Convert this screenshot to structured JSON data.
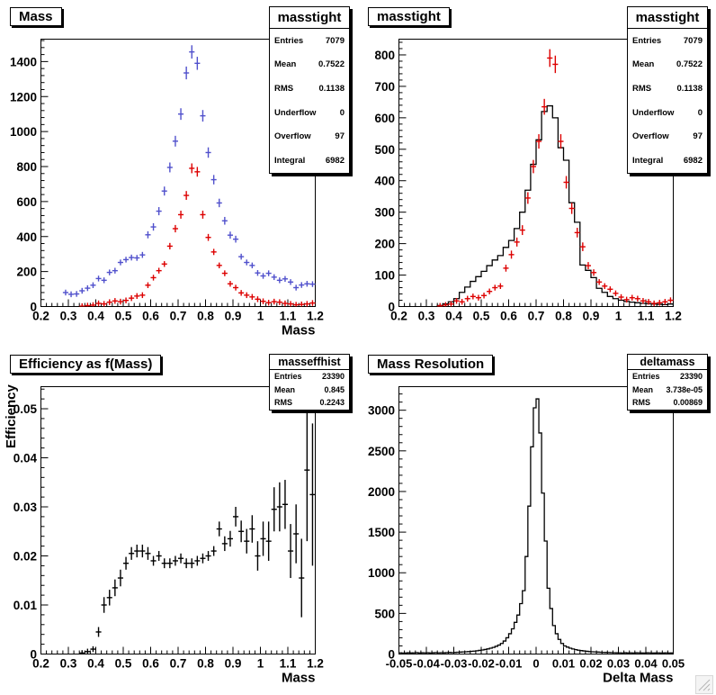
{
  "canvas": {
    "background": "#ffffff",
    "colors": {
      "marker_blue": "#5050cc",
      "marker_red": "#dd0000",
      "hist_black": "#000000"
    }
  },
  "window": {
    "resize_grip_icon": "resize-grip"
  },
  "chart_data": [
    {
      "id": "mass",
      "type": "scatter",
      "title": "Mass",
      "stats": {
        "name": "masstight",
        "rows": [
          {
            "label": "Entries",
            "value": "7079"
          },
          {
            "label": "Mean",
            "value": "0.7522"
          },
          {
            "label": "RMS",
            "value": "0.1138"
          },
          {
            "label": "Underflow",
            "value": "0"
          },
          {
            "label": "Overflow",
            "value": "97"
          },
          {
            "label": "Integral",
            "value": "6982"
          }
        ]
      },
      "xlabel": "Mass",
      "ylabel": "",
      "xlim": [
        0.2,
        1.2
      ],
      "ylim": [
        0,
        1528
      ],
      "xticks": {
        "values": [
          0.2,
          0.3,
          0.4,
          0.5,
          0.6,
          0.7,
          0.8,
          0.9,
          1.0,
          1.1,
          1.2
        ],
        "labels": [
          "0.2",
          "0.3",
          "0.4",
          "0.5",
          "0.6",
          "0.7",
          "0.8",
          "0.9",
          "1",
          "1.1",
          "1.2"
        ]
      },
      "yticks": {
        "values": [
          0,
          200,
          400,
          600,
          800,
          1000,
          1200,
          1400
        ],
        "labels": [
          "0",
          "200",
          "400",
          "600",
          "800",
          "1000",
          "1200",
          "1400"
        ]
      },
      "grid": false,
      "legend": "none",
      "series": [
        {
          "name": "mass-all-points",
          "style": "points",
          "color": "#5050cc",
          "errors": "sqrt",
          "x_start": 0.29,
          "x_step": 0.02,
          "y": [
            80,
            70,
            72,
            90,
            105,
            122,
            160,
            150,
            195,
            205,
            252,
            268,
            280,
            278,
            295,
            410,
            455,
            545,
            660,
            795,
            945,
            1100,
            1335,
            1455,
            1390,
            1090,
            880,
            725,
            592,
            490,
            408,
            385,
            285,
            252,
            235,
            192,
            175,
            190,
            168,
            150,
            158,
            140,
            108,
            123,
            130,
            128
          ]
        },
        {
          "name": "mass-tight-points",
          "style": "points",
          "color": "#dd0000",
          "errors": "sqrt",
          "x_start": 0.35,
          "x_step": 0.02,
          "y": [
            2,
            5,
            8,
            18,
            15,
            25,
            32,
            28,
            35,
            48,
            60,
            65,
            122,
            165,
            205,
            243,
            345,
            445,
            525,
            635,
            790,
            770,
            525,
            395,
            312,
            235,
            190,
            130,
            108,
            78,
            65,
            55,
            42,
            30,
            22,
            28,
            25,
            18,
            15,
            10,
            12,
            15,
            20
          ]
        }
      ]
    },
    {
      "id": "masstight",
      "type": "line",
      "title": "masstight",
      "stats": {
        "name": "masstight",
        "rows": [
          {
            "label": "Entries",
            "value": "7079"
          },
          {
            "label": "Mean",
            "value": "0.7522"
          },
          {
            "label": "RMS",
            "value": "0.1138"
          },
          {
            "label": "Underflow",
            "value": "0"
          },
          {
            "label": "Overflow",
            "value": "97"
          },
          {
            "label": "Integral",
            "value": "6982"
          }
        ]
      },
      "xlabel": "",
      "ylabel": "",
      "xlim": [
        0.2,
        1.2
      ],
      "ylim": [
        0,
        850
      ],
      "xticks": {
        "values": [
          0.2,
          0.3,
          0.4,
          0.5,
          0.6,
          0.7,
          0.8,
          0.9,
          1.0,
          1.1,
          1.2
        ],
        "labels": [
          "0.2",
          "0.3",
          "0.4",
          "0.5",
          "0.6",
          "0.7",
          "0.8",
          "0.9",
          "1",
          "1.1",
          "1.2"
        ]
      },
      "yticks": {
        "values": [
          0,
          100,
          200,
          300,
          400,
          500,
          600,
          700,
          800
        ],
        "labels": [
          "0",
          "100",
          "200",
          "300",
          "400",
          "500",
          "600",
          "700",
          "800"
        ]
      },
      "grid": false,
      "legend": "none",
      "series": [
        {
          "name": "mass-scaled-hist",
          "style": "hist",
          "color": "#000000",
          "x_start": 0.35,
          "x_step": 0.02,
          "y": [
            3,
            8,
            15,
            25,
            45,
            62,
            80,
            95,
            112,
            130,
            148,
            162,
            188,
            210,
            248,
            300,
            370,
            452,
            530,
            620,
            638,
            600,
            505,
            465,
            330,
            268,
            132,
            115,
            92,
            58,
            45,
            32,
            25,
            20,
            16,
            14,
            12,
            10,
            9,
            8,
            7,
            6,
            8
          ]
        },
        {
          "name": "mass-tight-points",
          "style": "points",
          "color": "#dd0000",
          "errors": "sqrt",
          "x_start": 0.35,
          "x_step": 0.02,
          "y": [
            2,
            5,
            8,
            18,
            15,
            25,
            32,
            28,
            35,
            48,
            60,
            65,
            122,
            165,
            205,
            243,
            345,
            445,
            525,
            635,
            790,
            770,
            525,
            395,
            312,
            235,
            190,
            130,
            108,
            78,
            65,
            55,
            42,
            30,
            22,
            28,
            25,
            18,
            15,
            10,
            12,
            15,
            20
          ]
        }
      ]
    },
    {
      "id": "efficiency",
      "type": "scatter",
      "title": "Efficiency as f(Mass)",
      "stats": {
        "name": "masseffhist",
        "rows": [
          {
            "label": "Entries",
            "value": "23390"
          },
          {
            "label": "Mean",
            "value": "0.845"
          },
          {
            "label": "RMS",
            "value": "0.2243"
          }
        ]
      },
      "xlabel": "Mass",
      "ylabel": "Efficiency",
      "xlim": [
        0.2,
        1.2
      ],
      "ylim": [
        0,
        0.0545
      ],
      "xticks": {
        "values": [
          0.2,
          0.3,
          0.4,
          0.5,
          0.6,
          0.7,
          0.8,
          0.9,
          1.0,
          1.1,
          1.2
        ],
        "labels": [
          "0.2",
          "0.3",
          "0.4",
          "0.5",
          "0.6",
          "0.7",
          "0.8",
          "0.9",
          "1",
          "1.1",
          "1.2"
        ]
      },
      "yticks": {
        "values": [
          0,
          0.01,
          0.02,
          0.03,
          0.04,
          0.05
        ],
        "labels": [
          "0",
          "0.01",
          "0.02",
          "0.03",
          "0.04",
          "0.05"
        ]
      },
      "grid": false,
      "legend": "none",
      "series": [
        {
          "name": "efficiency-points",
          "style": "points",
          "color": "#000000",
          "errors": "list",
          "x_start": 0.35,
          "x_step": 0.02,
          "y": [
            0.0002,
            0.0005,
            0.001,
            0.0045,
            0.01,
            0.0115,
            0.0135,
            0.0155,
            0.0185,
            0.0205,
            0.021,
            0.021,
            0.0205,
            0.019,
            0.02,
            0.0185,
            0.0185,
            0.019,
            0.0195,
            0.0185,
            0.0185,
            0.019,
            0.0195,
            0.02,
            0.021,
            0.0255,
            0.0225,
            0.0235,
            0.028,
            0.025,
            0.023,
            0.0255,
            0.02,
            0.0235,
            0.023,
            0.0295,
            0.03,
            0.0305,
            0.021,
            0.0245,
            0.0155,
            0.0375,
            0.0325
          ],
          "err": [
            0.0002,
            0.0003,
            0.0004,
            0.001,
            0.0016,
            0.0016,
            0.0017,
            0.0017,
            0.0013,
            0.0013,
            0.0013,
            0.0013,
            0.0013,
            0.001,
            0.001,
            0.001,
            0.001,
            0.001,
            0.001,
            0.001,
            0.001,
            0.001,
            0.001,
            0.001,
            0.001,
            0.0015,
            0.0015,
            0.0016,
            0.002,
            0.0022,
            0.0025,
            0.0028,
            0.003,
            0.0035,
            0.004,
            0.0045,
            0.005,
            0.005,
            0.0055,
            0.006,
            0.008,
            0.0145,
            0.0145
          ]
        }
      ]
    },
    {
      "id": "mass-resolution",
      "type": "line",
      "title": "Mass Resolution",
      "stats": {
        "name": "deltamass",
        "rows": [
          {
            "label": "Entries",
            "value": "23390"
          },
          {
            "label": "Mean",
            "value": "3.738e-05"
          },
          {
            "label": "RMS",
            "value": "0.00869"
          }
        ]
      },
      "xlabel": "Delta Mass",
      "ylabel": "",
      "xlim": [
        -0.05,
        0.05
      ],
      "ylim": [
        0,
        3290
      ],
      "xtick_font": 13,
      "xticks": {
        "values": [
          -0.05,
          -0.04,
          -0.03,
          -0.02,
          -0.01,
          0,
          0.01,
          0.02,
          0.03,
          0.04,
          0.05
        ],
        "labels": [
          "-0.05",
          "-0.04",
          "-0.03",
          "-0.02",
          "-0.01",
          "0",
          "0.01",
          "0.02",
          "0.03",
          "0.04",
          "0.05"
        ]
      },
      "yticks": {
        "values": [
          0,
          500,
          1000,
          1500,
          2000,
          2500,
          3000
        ],
        "labels": [
          "0",
          "500",
          "1000",
          "1500",
          "2000",
          "2500",
          "3000"
        ]
      },
      "grid": false,
      "legend": "none",
      "series": [
        {
          "name": "deltamass-hist",
          "style": "hist",
          "color": "#000000",
          "x_start": -0.0495,
          "x_step": 0.001,
          "y": [
            15,
            12,
            14,
            16,
            13,
            15,
            18,
            14,
            16,
            15,
            17,
            14,
            16,
            18,
            15,
            17,
            16,
            18,
            20,
            18,
            20,
            22,
            24,
            26,
            28,
            30,
            33,
            36,
            40,
            45,
            50,
            56,
            63,
            72,
            82,
            95,
            110,
            130,
            160,
            200,
            250,
            310,
            390,
            480,
            620,
            780,
            1200,
            1820,
            2550,
            3030,
            3140,
            2720,
            1980,
            1390,
            810,
            560,
            350,
            250,
            180,
            130,
            100,
            85,
            72,
            62,
            54,
            47,
            42,
            38,
            34,
            30,
            28,
            26,
            24,
            22,
            21,
            20,
            19,
            18,
            17,
            16,
            15,
            14,
            16,
            13,
            15,
            14,
            16,
            15,
            13,
            14,
            16,
            15,
            14,
            13,
            15,
            14,
            13,
            15,
            14,
            13
          ]
        }
      ]
    }
  ]
}
